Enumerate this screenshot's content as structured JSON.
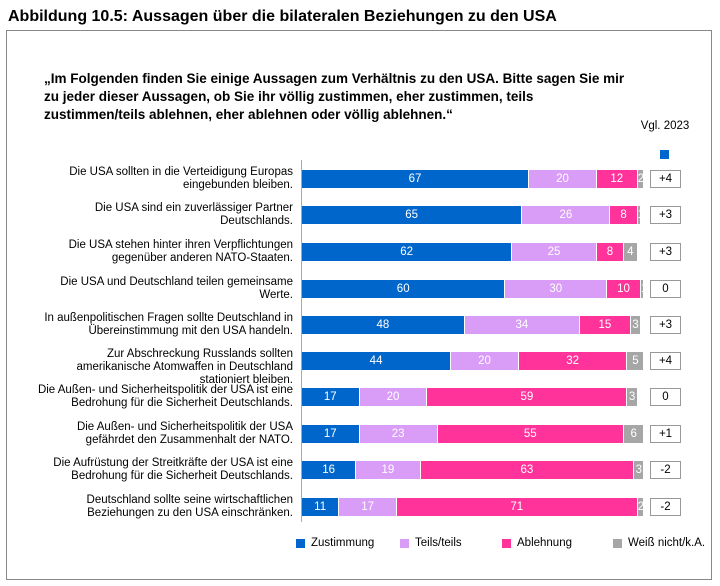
{
  "title": "Abbildung 10.5:  Aussagen über die bilateralen Beziehungen zu den USA",
  "question": "„Im Folgenden finden Sie einige Aussagen zum Verhältnis zu den USA. Bitte sagen Sie mir zu jeder dieser Aussagen, ob Sie ihr völlig zustimmen, eher zustimmen, teils zustimmen/teils ablehnen, eher ablehnen oder völlig ablehnen.“",
  "comparison_header": "Vgl. 2023",
  "chart_data": {
    "type": "bar",
    "orientation": "horizontal-stacked",
    "unit": "percent",
    "categories": [
      "Die USA sollten in die Verteidigung Europas eingebunden bleiben.",
      "Die USA sind ein zuverlässiger Partner Deutschlands.",
      "Die USA stehen hinter ihren Verpflichtungen gegenüber anderen NATO-Staaten.",
      "Die USA und Deutschland teilen gemeinsame Werte.",
      "In außenpolitischen Fragen sollte Deutschland in Übereinstimmung mit den USA handeln.",
      "Zur Abschreckung Russlands sollten amerikanische Atomwaffen in Deutschland stationiert bleiben.",
      "Die Außen- und Sicherheitspolitik der USA ist eine Bedrohung für die Sicherheit Deutschlands.",
      "Die Außen- und Sicherheitspolitik der USA gefährdet den Zusammenhalt der NATO.",
      "Die Aufrüstung der Streitkräfte der USA ist eine Bedrohung für die Sicherheit Deutschlands.",
      "Deutschland sollte seine wirtschaftlichen Beziehungen zu den USA einschränken."
    ],
    "series": [
      {
        "name": "Zustimmung",
        "color": "#0066cc",
        "values": [
          67,
          65,
          62,
          60,
          48,
          44,
          17,
          17,
          16,
          11
        ]
      },
      {
        "name": "Teils/teils",
        "color": "#d99cf7",
        "values": [
          20,
          26,
          25,
          30,
          34,
          20,
          20,
          23,
          19,
          17
        ]
      },
      {
        "name": "Ablehnung",
        "color": "#ff3399",
        "values": [
          12,
          8,
          8,
          10,
          15,
          32,
          59,
          55,
          63,
          71
        ]
      },
      {
        "name": "Weiß nicht/k.A.",
        "color": "#a6a6a6",
        "values": [
          2,
          1,
          4,
          1,
          3,
          5,
          3,
          6,
          3,
          2
        ]
      }
    ],
    "change_vs_2023": [
      "+4",
      "+3",
      "+3",
      "0",
      "+3",
      "+4",
      "0",
      "+1",
      "-2",
      "-2"
    ],
    "legend_position": "bottom",
    "xlim": [
      0,
      100
    ]
  }
}
